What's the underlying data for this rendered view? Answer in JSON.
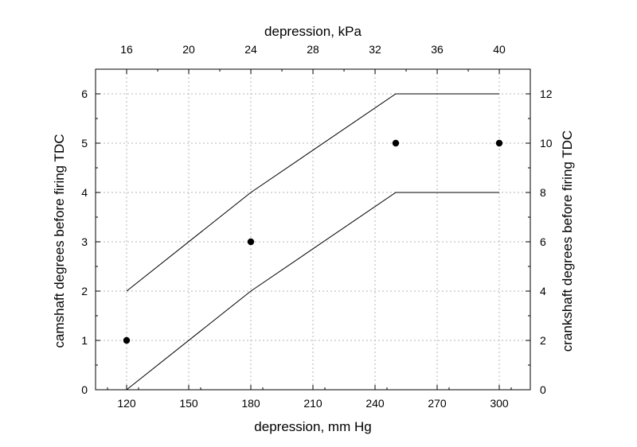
{
  "chart_data": {
    "type": "line",
    "title": "",
    "xlabel": "depression, mm Hg",
    "x2label": "depression, kPa",
    "ylabel": "camshaft degrees before firing TDC",
    "y2label": "crankshaft degrees before firing TDC",
    "xlim": [
      105,
      315
    ],
    "ylim": [
      0,
      6.5
    ],
    "x_ticks": [
      "120",
      "150",
      "180",
      "210",
      "240",
      "270",
      "300"
    ],
    "x2_ticks": [
      "16",
      "20",
      "24",
      "28",
      "32",
      "36",
      "40"
    ],
    "y_ticks": [
      "0",
      "1",
      "2",
      "3",
      "4",
      "5",
      "6"
    ],
    "y2_ticks": [
      "0",
      "2",
      "4",
      "6",
      "8",
      "10",
      "12"
    ],
    "kpa_per_mmhg": 0.133322,
    "grid": true,
    "series": [
      {
        "kind": "line",
        "x": [
          120,
          180,
          250,
          300
        ],
        "y": [
          2,
          4,
          6,
          6
        ]
      },
      {
        "kind": "line",
        "x": [
          120,
          180,
          250,
          300
        ],
        "y": [
          0,
          2,
          4,
          4
        ]
      },
      {
        "kind": "scatter",
        "x": [
          120,
          180,
          250,
          300
        ],
        "y": [
          1,
          3,
          5,
          5
        ]
      }
    ]
  }
}
